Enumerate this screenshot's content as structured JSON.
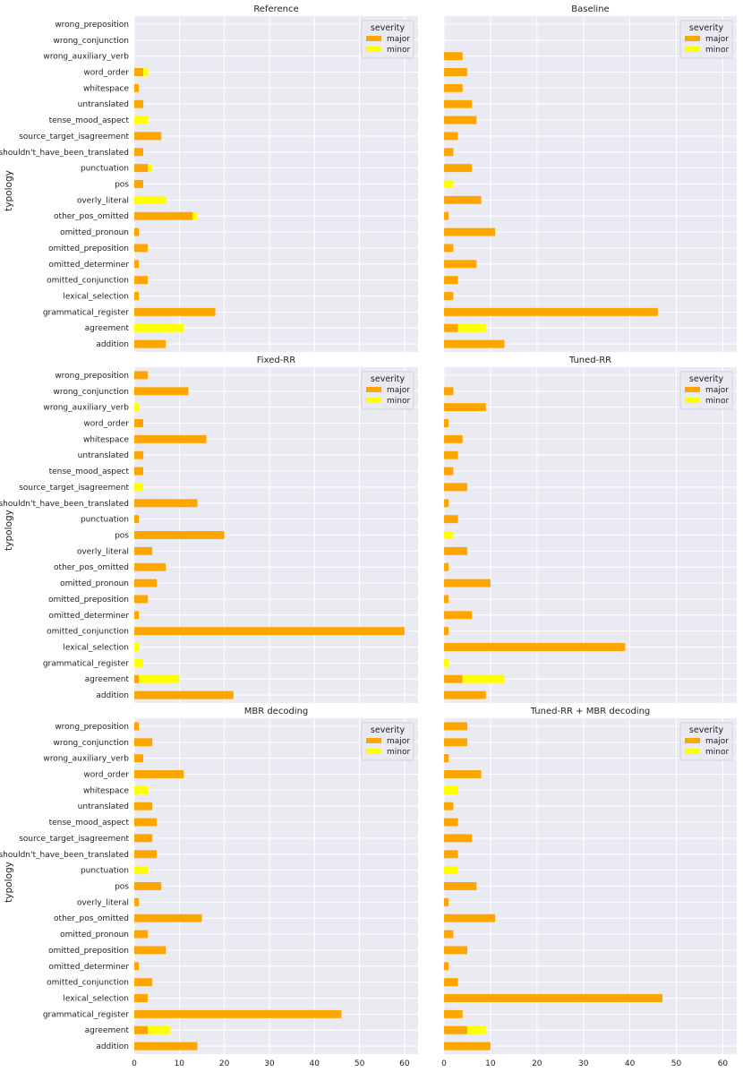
{
  "colors": {
    "major": "#FFA500",
    "minor": "#FFFF00",
    "panel_bg": "#EAEAF2",
    "grid": "#FFFFFF"
  },
  "chart_data": {
    "type": "bar",
    "orientation": "horizontal",
    "stacked": true,
    "grid": true,
    "legend": {
      "title": "severity",
      "labels": [
        "major",
        "minor"
      ],
      "placement": "top-right"
    },
    "ylabel": "typology",
    "xlim": [
      0,
      63
    ],
    "xticks": [
      0,
      10,
      20,
      30,
      40,
      50,
      60
    ],
    "categories": [
      "addition",
      "agreement",
      "grammatical_register",
      "lexical_selection",
      "omitted_conjunction",
      "omitted_determiner",
      "omitted_preposition",
      "omitted_pronoun",
      "other_pos_omitted",
      "overly_literal",
      "pos",
      "punctuation",
      "shouldn't_have_been_translated",
      "source_target_isagreement",
      "tense_mood_aspect",
      "untranslated",
      "whitespace",
      "word_order",
      "wrong_auxiliary_verb",
      "wrong_conjunction",
      "wrong_preposition"
    ],
    "panels": [
      {
        "title": "Reference",
        "major": [
          7,
          0,
          18,
          1,
          3,
          1,
          3,
          1,
          13,
          0,
          2,
          3,
          2,
          6,
          0,
          2,
          1,
          2,
          0,
          0,
          0
        ],
        "minor": [
          0,
          11,
          0,
          0,
          0,
          0,
          0,
          0,
          1,
          7,
          0,
          1,
          0,
          0,
          3,
          0,
          0,
          1,
          0,
          0,
          0
        ]
      },
      {
        "title": "Baseline",
        "major": [
          13,
          3,
          46,
          2,
          3,
          7,
          2,
          11,
          1,
          8,
          0,
          6,
          2,
          3,
          7,
          6,
          4,
          5,
          4,
          0,
          0
        ],
        "minor": [
          0,
          6,
          0,
          0,
          0,
          0,
          0,
          0,
          0,
          0,
          2,
          0,
          0,
          0,
          0,
          0,
          0,
          0,
          0,
          0,
          0
        ]
      },
      {
        "title": "Fixed-RR",
        "major": [
          22,
          1,
          0,
          0,
          60,
          1,
          3,
          5,
          7,
          4,
          20,
          1,
          14,
          0,
          2,
          2,
          16,
          2,
          0,
          12,
          3
        ],
        "minor": [
          0,
          9,
          2,
          1,
          0,
          0,
          0,
          0,
          0,
          0,
          0,
          0,
          0,
          2,
          0,
          0,
          0,
          0,
          1,
          0,
          0
        ]
      },
      {
        "title": "Tuned-RR",
        "major": [
          9,
          4,
          0,
          39,
          1,
          6,
          1,
          10,
          1,
          5,
          0,
          3,
          1,
          5,
          2,
          3,
          4,
          1,
          9,
          2,
          0
        ],
        "minor": [
          0,
          9,
          1,
          0,
          0,
          0,
          0,
          0,
          0,
          0,
          2,
          0,
          0,
          0,
          0,
          0,
          0,
          0,
          0,
          0,
          0
        ]
      },
      {
        "title": "MBR decoding",
        "major": [
          14,
          3,
          46,
          3,
          4,
          1,
          7,
          3,
          15,
          1,
          6,
          0,
          5,
          4,
          5,
          4,
          0,
          11,
          2,
          4,
          1
        ],
        "minor": [
          0,
          5,
          0,
          0,
          0,
          0,
          0,
          0,
          0,
          0,
          0,
          3,
          0,
          0,
          0,
          0,
          3,
          0,
          0,
          0,
          0
        ]
      },
      {
        "title": "Tuned-RR + MBR decoding",
        "major": [
          10,
          5,
          4,
          47,
          3,
          1,
          5,
          2,
          11,
          1,
          7,
          0,
          3,
          6,
          3,
          2,
          0,
          8,
          1,
          5,
          5
        ],
        "minor": [
          0,
          4,
          0,
          0,
          0,
          0,
          0,
          0,
          0,
          0,
          0,
          3,
          0,
          0,
          0,
          0,
          3,
          0,
          0,
          0,
          0
        ]
      }
    ]
  }
}
